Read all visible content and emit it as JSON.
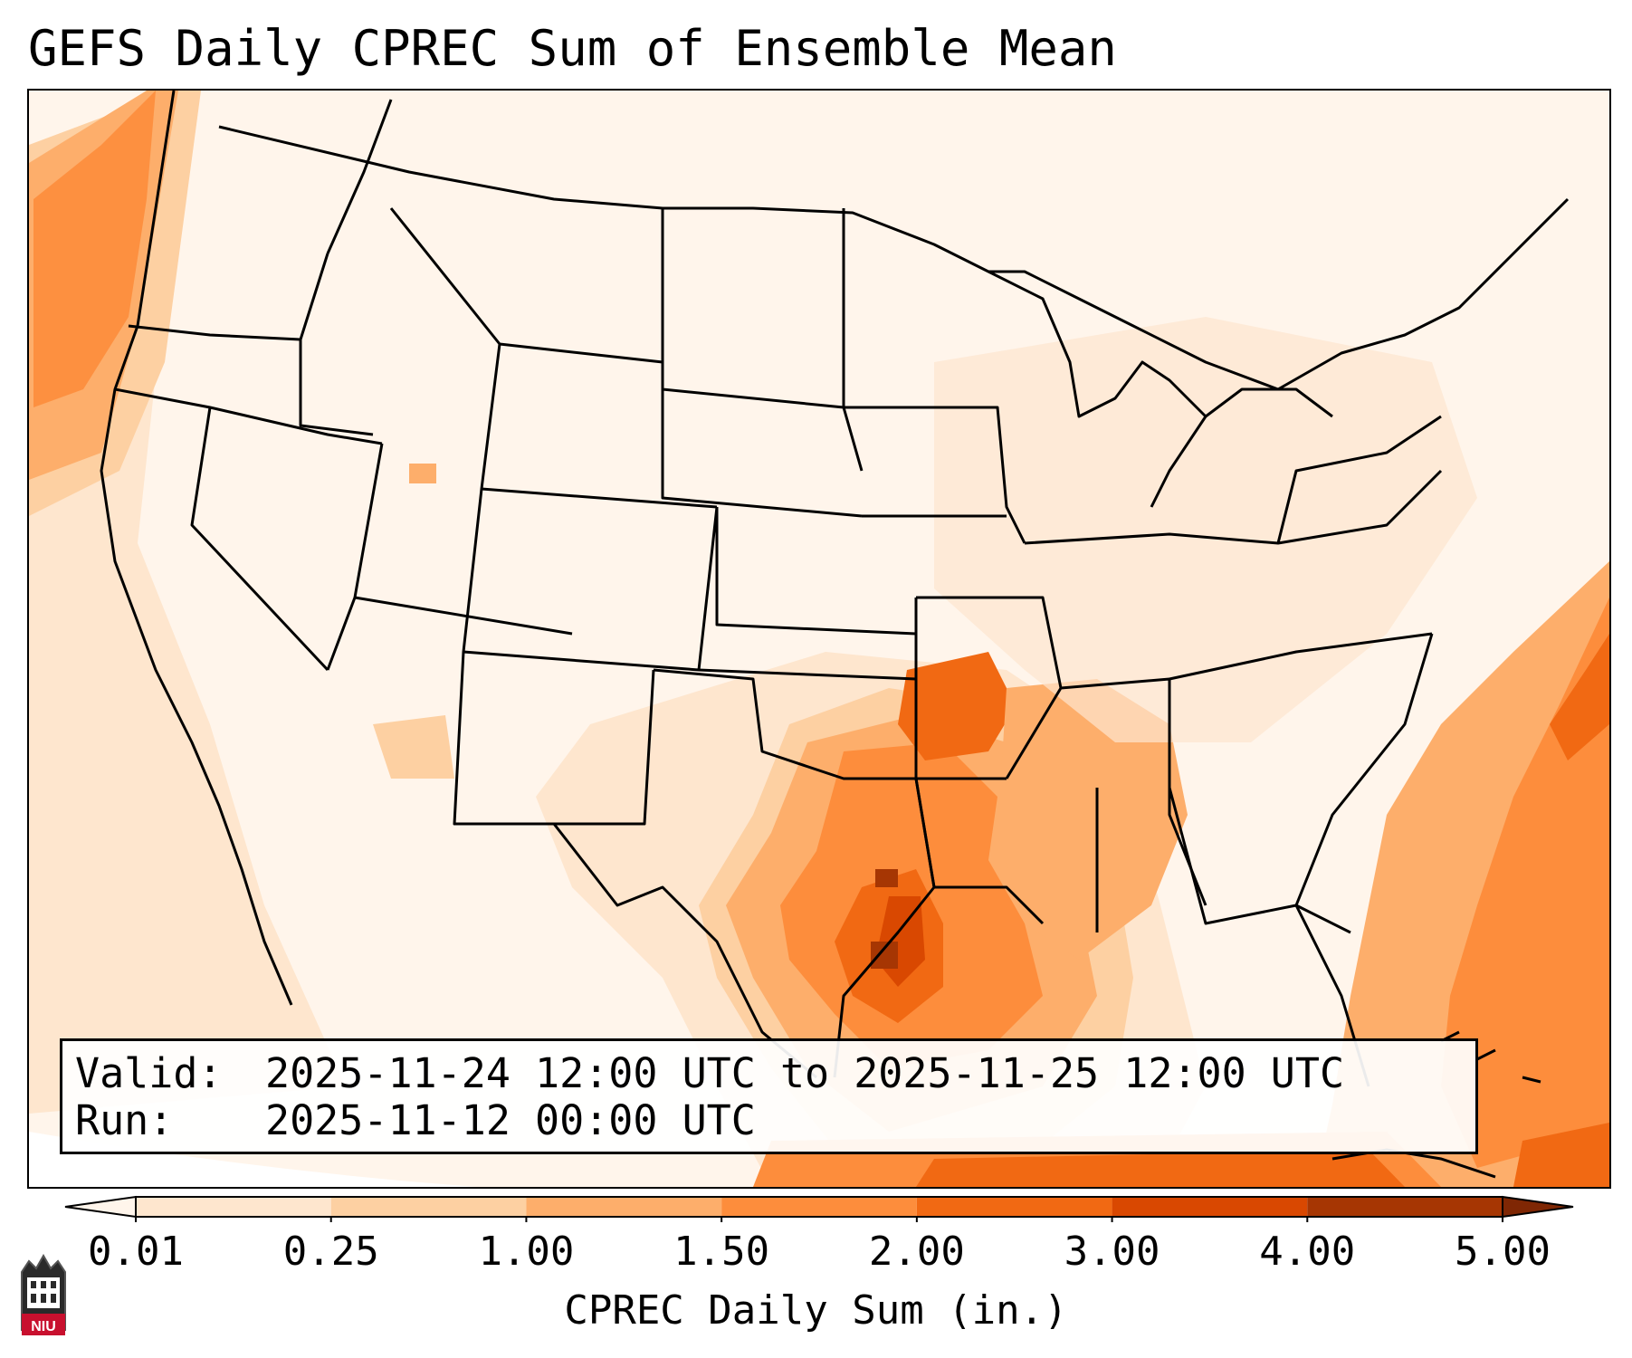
{
  "title": "GEFS Daily CPREC Sum of Ensemble Mean",
  "validity": {
    "valid_label": "Valid:",
    "valid_value": "2025-11-24 12:00 UTC to 2025-11-25 12:00 UTC",
    "run_label": "Run:",
    "run_value": "2025-11-12 00:00 UTC"
  },
  "colorbar": {
    "label": "CPREC Daily Sum (in.)",
    "ticks": [
      "0.01",
      "0.25",
      "1.00",
      "1.50",
      "2.00",
      "3.00",
      "4.00",
      "5.00"
    ],
    "colors": [
      "#fff5eb",
      "#fee6ce",
      "#fdd0a2",
      "#fdae6b",
      "#fd8d3c",
      "#f16913",
      "#d94801",
      "#a63603",
      "#7f2704"
    ]
  },
  "logo": {
    "text": "NIU"
  }
}
